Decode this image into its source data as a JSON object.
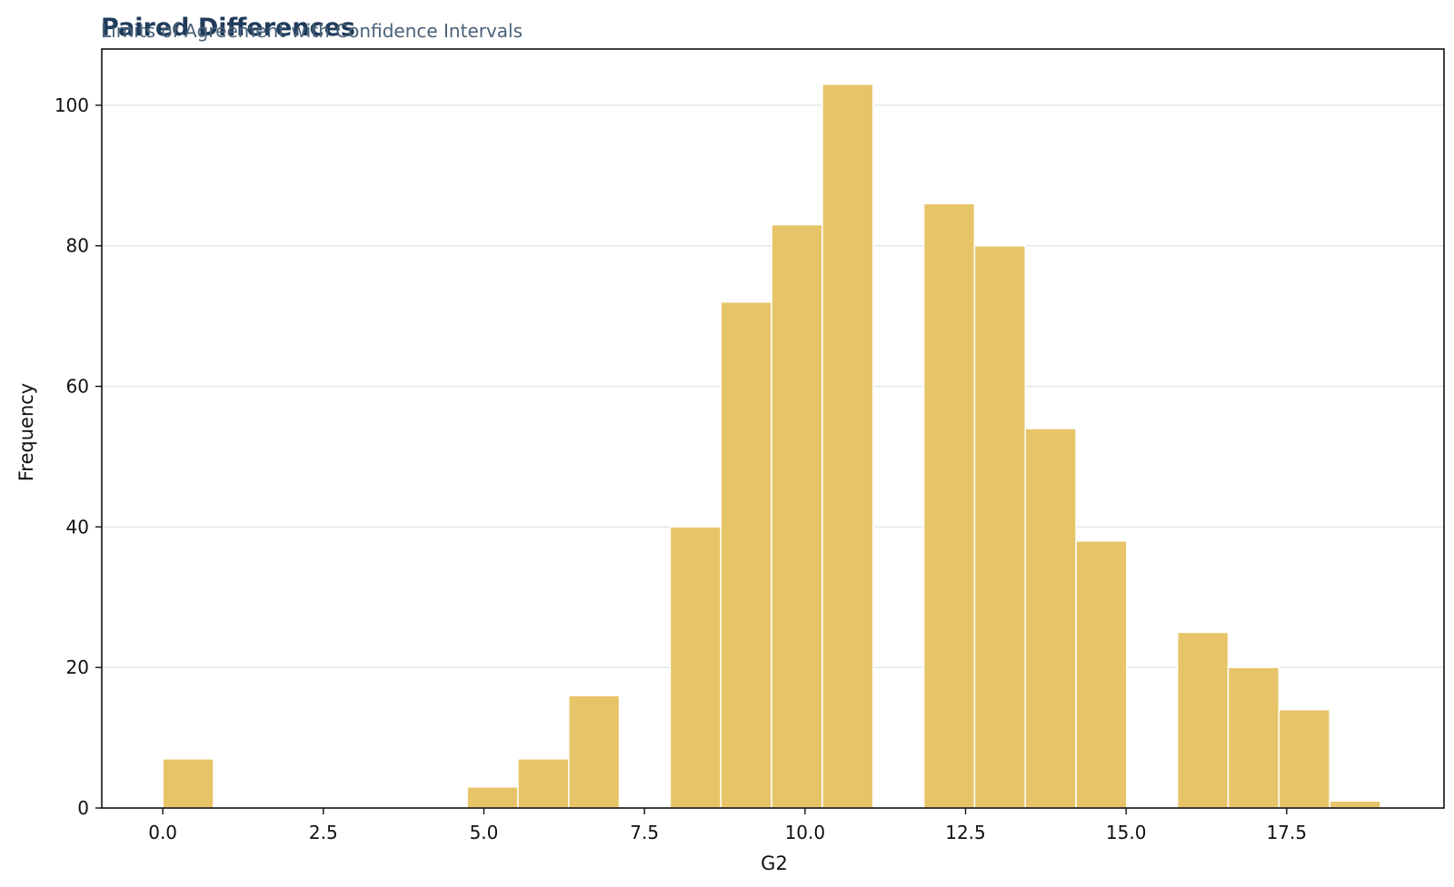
{
  "chart_data": {
    "type": "bar",
    "title": "Paired Differences",
    "subtitle": "Limits of Agreement with Confidence Intervals",
    "xlabel": "G2",
    "ylabel": "Frequency",
    "xlim": [
      -0.95,
      19.95
    ],
    "ylim": [
      0,
      108
    ],
    "xticks": [
      0.0,
      2.5,
      5.0,
      7.5,
      10.0,
      12.5,
      15.0,
      17.5
    ],
    "xtick_labels": [
      "0.0",
      "2.5",
      "5.0",
      "7.5",
      "10.0",
      "12.5",
      "15.0",
      "17.5"
    ],
    "yticks": [
      0,
      20,
      40,
      60,
      80,
      100
    ],
    "ytick_labels": [
      "0",
      "20",
      "40",
      "60",
      "80",
      "100"
    ],
    "grid": "horizontal",
    "bar_color": "#e8c468",
    "bins": [
      {
        "x0": 0.0,
        "x1": 0.79,
        "value": 7
      },
      {
        "x0": 4.74,
        "x1": 5.53,
        "value": 3
      },
      {
        "x0": 5.53,
        "x1": 6.32,
        "value": 7
      },
      {
        "x0": 6.32,
        "x1": 7.11,
        "value": 16
      },
      {
        "x0": 7.9,
        "x1": 8.69,
        "value": 40
      },
      {
        "x0": 8.69,
        "x1": 9.48,
        "value": 72
      },
      {
        "x0": 9.48,
        "x1": 10.27,
        "value": 83
      },
      {
        "x0": 10.27,
        "x1": 11.06,
        "value": 103
      },
      {
        "x0": 11.85,
        "x1": 12.64,
        "value": 86
      },
      {
        "x0": 12.64,
        "x1": 13.43,
        "value": 80
      },
      {
        "x0": 13.43,
        "x1": 14.22,
        "value": 54
      },
      {
        "x0": 14.22,
        "x1": 15.01,
        "value": 38
      },
      {
        "x0": 15.8,
        "x1": 16.59,
        "value": 25
      },
      {
        "x0": 16.59,
        "x1": 17.38,
        "value": 20
      },
      {
        "x0": 17.38,
        "x1": 18.17,
        "value": 14
      },
      {
        "x0": 18.17,
        "x1": 18.96,
        "value": 1
      }
    ]
  }
}
